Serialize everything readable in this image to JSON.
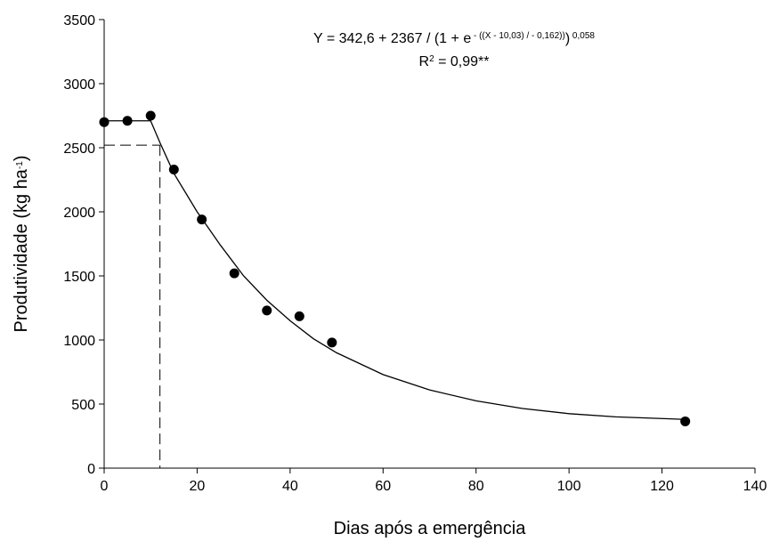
{
  "chart_data": {
    "type": "scatter",
    "x_label": {
      "parts": [
        {
          "text": "Dias após a emergência"
        }
      ]
    },
    "y_label": {
      "parts": [
        {
          "text": "Produtividade (kg ha"
        },
        {
          "text": "-1",
          "sup": true
        },
        {
          "text": ")"
        }
      ]
    },
    "annotations": [
      {
        "parts": [
          {
            "text": "Y = 342,6 + 2367 / (1 + e"
          },
          {
            "text": " - ((X - 10,03) / - 0,162))",
            "sup": true
          },
          {
            "text": ")"
          },
          {
            "text": " 0,058",
            "sup": true
          }
        ]
      },
      {
        "parts": [
          {
            "text": "R"
          },
          {
            "text": "2",
            "sup": true
          },
          {
            "text": " = 0,99**"
          }
        ]
      }
    ],
    "x": [
      0,
      5,
      10,
      15,
      21,
      28,
      35,
      42,
      49,
      125
    ],
    "values": [
      2700,
      2710,
      2750,
      2330,
      1940,
      1520,
      1230,
      1185,
      980,
      365
    ],
    "color": "#000000",
    "curve": {
      "x": [
        0,
        10,
        12,
        15,
        20,
        25,
        30,
        35,
        40,
        45,
        50,
        60,
        70,
        80,
        90,
        100,
        110,
        125
      ],
      "values": [
        2710,
        2710,
        2540,
        2300,
        2000,
        1740,
        1500,
        1310,
        1150,
        1010,
        900,
        730,
        610,
        525,
        465,
        425,
        400,
        380
      ]
    },
    "reference": {
      "x": 12,
      "y": 2520
    },
    "xlim": [
      0,
      140
    ],
    "ylim": [
      0,
      3500
    ],
    "xticks": [
      0,
      20,
      40,
      60,
      80,
      100,
      120,
      140
    ],
    "yticks": [
      0,
      500,
      1000,
      1500,
      2000,
      2500,
      3000,
      3500
    ],
    "grid": false
  }
}
